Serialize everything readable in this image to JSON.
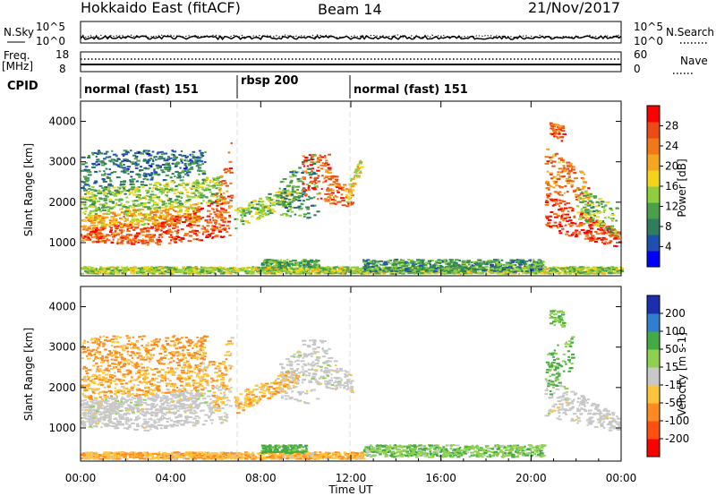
{
  "header": {
    "station": "Hokkaido East (fitACF)",
    "beam": "Beam 14",
    "date": "21/Nov/2017"
  },
  "top_panels": {
    "nsky": {
      "label": "N.Sky",
      "ticks": [
        "10^5",
        "10^0"
      ]
    },
    "nsearch": {
      "label": "N.Search",
      "ticks": [
        "10^5",
        "10^0"
      ]
    },
    "freq": {
      "label_line1": "Freq.",
      "label_line2": "[MHz]",
      "ticks": [
        "18",
        "8"
      ]
    },
    "nave": {
      "label": "Nave",
      "ticks": [
        "60",
        "0"
      ]
    },
    "cpid": {
      "label": "CPID",
      "segments": [
        {
          "name": "normal (fast) 151",
          "start_hour": 0,
          "end_hour": 7.0
        },
        {
          "name": "rbsp 200",
          "start_hour": 7.0,
          "end_hour": 12.0
        },
        {
          "name": "normal (fast) 151",
          "start_hour": 12.0,
          "end_hour": 24.0
        }
      ]
    }
  },
  "xaxis": {
    "label": "Time UT",
    "range_hours": [
      0,
      24
    ],
    "major_ticks": [
      0,
      4,
      8,
      12,
      16,
      20,
      24
    ],
    "tick_labels": [
      "00:00",
      "04:00",
      "08:00",
      "12:00",
      "16:00",
      "20:00",
      "00:00"
    ]
  },
  "colors": {
    "power": [
      "#0000ff",
      "#1f4fb0",
      "#2e7d5e",
      "#4aa04a",
      "#8dcf3d",
      "#f2d51a",
      "#f7a521",
      "#f07818",
      "#ee4b14",
      "#ff0000"
    ],
    "velocity": [
      "#ff0000",
      "#ff5010",
      "#ff8a1f",
      "#ffc43a",
      "#c8c8c8",
      "#8ed14f",
      "#44aa44",
      "#2f7fd0",
      "#1a2fb0"
    ],
    "ground_scatter": "#c8c8c8"
  },
  "chart_data": [
    {
      "type": "heatmap",
      "title": "",
      "name": "power",
      "ylabel": "Slant Range [km]",
      "ylim": [
        180,
        4500
      ],
      "yticks": [
        1000,
        2000,
        3000,
        4000
      ],
      "colorbar": {
        "label": "Power [dB]",
        "range": [
          0,
          32
        ],
        "ticks": [
          4,
          8,
          12,
          16,
          20,
          24,
          28
        ]
      },
      "regions": [
        {
          "t": [
            0.0,
            3.0
          ],
          "r_low": [
            1050,
            950
          ],
          "r_high": [
            1400,
            1500
          ],
          "value": 26
        },
        {
          "t": [
            0.0,
            5.2
          ],
          "r_low": [
            1400,
            1500
          ],
          "r_high": [
            1700,
            2000
          ],
          "value": 20
        },
        {
          "t": [
            0.0,
            6.3
          ],
          "r_low": [
            1700,
            2000
          ],
          "r_high": [
            2300,
            2700
          ],
          "value": 14
        },
        {
          "t": [
            0.0,
            5.5
          ],
          "r_low": [
            2300,
            2700
          ],
          "r_high": [
            3300,
            3300
          ],
          "value": 8
        },
        {
          "t": [
            3.0,
            6.6
          ],
          "r_low": [
            950,
            1150
          ],
          "r_high": [
            1400,
            2200
          ],
          "value": 27
        },
        {
          "t": [
            5.8,
            6.7
          ],
          "r_low": [
            1200,
            2000
          ],
          "r_high": [
            2000,
            3600
          ],
          "value": 25
        },
        {
          "t": [
            6.8,
            9.6
          ],
          "r_low": [
            1350,
            2050
          ],
          "r_high": [
            1850,
            2550
          ],
          "value": 14
        },
        {
          "t": [
            8.8,
            10.5
          ],
          "r_low": [
            1700,
            1600
          ],
          "r_high": [
            2600,
            3300
          ],
          "value": 10
        },
        {
          "t": [
            9.8,
            11.0
          ],
          "r_low": [
            2200,
            2000
          ],
          "r_high": [
            3200,
            3200
          ],
          "value": 27
        },
        {
          "t": [
            10.8,
            12.0
          ],
          "r_low": [
            2000,
            1900
          ],
          "r_high": [
            2900,
            2300
          ],
          "value": 25
        },
        {
          "t": [
            11.7,
            12.4
          ],
          "r_low": [
            1900,
            2800
          ],
          "r_high": [
            2300,
            3100
          ],
          "value": 18
        },
        {
          "t": [
            20.6,
            23.9
          ],
          "r_low": [
            1300,
            900
          ],
          "r_high": [
            2300,
            1300
          ],
          "value": 28
        },
        {
          "t": [
            20.6,
            22.5
          ],
          "r_low": [
            2300,
            2000
          ],
          "r_high": [
            3400,
            2700
          ],
          "value": 24
        },
        {
          "t": [
            20.8,
            21.4
          ],
          "r_low": [
            3700,
            3500
          ],
          "r_high": [
            4000,
            3900
          ],
          "value": 26
        },
        {
          "t": [
            22.0,
            23.8
          ],
          "r_low": [
            1600,
            1200
          ],
          "r_high": [
            2400,
            1900
          ],
          "value": 13
        },
        {
          "t": [
            0.0,
            24.0
          ],
          "r_low": [
            250,
            250
          ],
          "r_high": [
            420,
            420
          ],
          "value": 15
        },
        {
          "t": [
            12.5,
            20.5
          ],
          "r_low": [
            300,
            300
          ],
          "r_high": [
            600,
            600
          ],
          "value": 10
        },
        {
          "t": [
            8.0,
            10.5
          ],
          "r_low": [
            400,
            400
          ],
          "r_high": [
            600,
            600
          ],
          "value": 12
        }
      ]
    },
    {
      "type": "heatmap",
      "title": "",
      "name": "velocity",
      "ylabel": "Slant Range [km]",
      "ylim": [
        180,
        4500
      ],
      "yticks": [
        1000,
        2000,
        3000,
        4000
      ],
      "colorbar": {
        "label": "Velocity [m s-1]",
        "range": [
          -250,
          250
        ],
        "ticks": [
          -200,
          -100,
          -50,
          -15,
          15,
          50,
          100,
          200
        ]
      },
      "regions": [
        {
          "t": [
            0.0,
            3.0
          ],
          "r_low": [
            1050,
            950
          ],
          "r_high": [
            1400,
            1500
          ],
          "value": 0,
          "gs": true
        },
        {
          "t": [
            0.0,
            5.2
          ],
          "r_low": [
            1400,
            1500
          ],
          "r_high": [
            1700,
            2000
          ],
          "value": 0,
          "gs": true
        },
        {
          "t": [
            0.0,
            6.3
          ],
          "r_low": [
            1700,
            2000
          ],
          "r_high": [
            2300,
            2700
          ],
          "value": -40
        },
        {
          "t": [
            0.0,
            5.5
          ],
          "r_low": [
            2300,
            2700
          ],
          "r_high": [
            3300,
            3300
          ],
          "value": -60
        },
        {
          "t": [
            3.0,
            6.6
          ],
          "r_low": [
            950,
            1150
          ],
          "r_high": [
            1400,
            2200
          ],
          "value": 0,
          "gs": true
        },
        {
          "t": [
            5.8,
            6.7
          ],
          "r_low": [
            1200,
            2000
          ],
          "r_high": [
            2000,
            3600
          ],
          "value": -30
        },
        {
          "t": [
            6.8,
            9.6
          ],
          "r_low": [
            1350,
            2050
          ],
          "r_high": [
            1850,
            2550
          ],
          "value": -40
        },
        {
          "t": [
            8.8,
            10.5
          ],
          "r_low": [
            1700,
            1600
          ],
          "r_high": [
            2600,
            3300
          ],
          "value": 0,
          "gs": true
        },
        {
          "t": [
            9.8,
            11.0
          ],
          "r_low": [
            2200,
            2000
          ],
          "r_high": [
            3200,
            3200
          ],
          "value": 0,
          "gs": true
        },
        {
          "t": [
            10.8,
            12.0
          ],
          "r_low": [
            2000,
            1900
          ],
          "r_high": [
            2900,
            2300
          ],
          "value": 0,
          "gs": true
        },
        {
          "t": [
            20.6,
            23.9
          ],
          "r_low": [
            1300,
            900
          ],
          "r_high": [
            2300,
            1300
          ],
          "value": 0,
          "gs": true
        },
        {
          "t": [
            20.6,
            21.8
          ],
          "r_low": [
            1700,
            2500
          ],
          "r_high": [
            2800,
            3400
          ],
          "value": 60
        },
        {
          "t": [
            20.8,
            21.4
          ],
          "r_low": [
            3600,
            3500
          ],
          "r_high": [
            4000,
            3900
          ],
          "value": 55
        },
        {
          "t": [
            0.0,
            12.5
          ],
          "r_low": [
            250,
            250
          ],
          "r_high": [
            420,
            420
          ],
          "value": -40
        },
        {
          "t": [
            12.5,
            20.5
          ],
          "r_low": [
            300,
            300
          ],
          "r_high": [
            600,
            600
          ],
          "value": 40
        },
        {
          "t": [
            8.0,
            10.0
          ],
          "r_low": [
            400,
            400
          ],
          "r_high": [
            600,
            600
          ],
          "value": 70
        }
      ]
    }
  ]
}
